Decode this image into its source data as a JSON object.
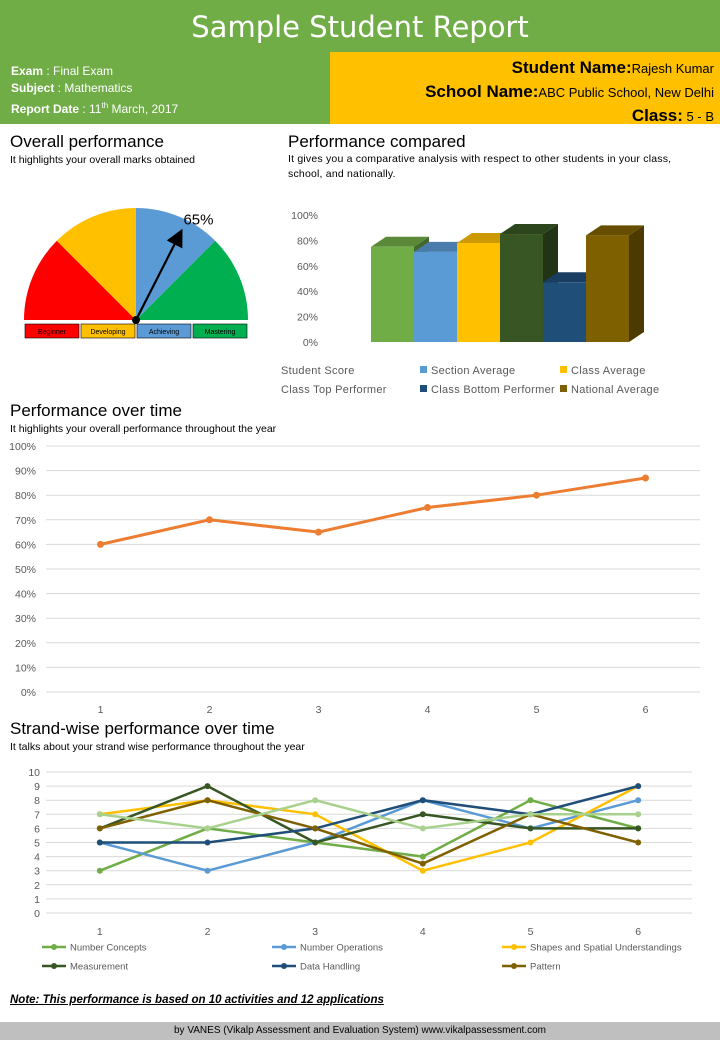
{
  "header": {
    "title": "Sample Student Report",
    "exam_label": "Exam",
    "exam_value": " : Final Exam",
    "subject_label": "Subject",
    "subject_value": " : Mathematics",
    "report_date_label": "Report Date",
    "report_date_prefix": " : 11",
    "report_date_sup": "th",
    "report_date_suffix": " March, 2017",
    "student_name_label": "Student Name:",
    "student_name_value": "Rajesh Kumar",
    "school_name_label": "School Name:",
    "school_name_value": "ABC Public School, New Delhi",
    "class_label": "Class:",
    "class_value": " 5 - B"
  },
  "overall": {
    "title": "Overall performance",
    "subtitle": "It highlights your overall marks obtained",
    "gauge_value_label": "65%",
    "gauge_percent": 65,
    "bands": [
      {
        "label": "Beginner",
        "color": "#ff0000"
      },
      {
        "label": "Developing",
        "color": "#ffc000"
      },
      {
        "label": "Achieving",
        "color": "#5b9bd5"
      },
      {
        "label": "Mastering",
        "color": "#00b050"
      }
    ]
  },
  "compared": {
    "title": "Performance compared",
    "subtitle": "It gives you a comparative analysis with respect to other students in your class, school, and nationally."
  },
  "over_time": {
    "title": "Performance over time",
    "subtitle": "It highlights your overall performance throughout the year"
  },
  "strand": {
    "title": "Strand-wise performance over time",
    "subtitle": "It talks about your strand wise performance throughout the year"
  },
  "chart_data": [
    {
      "type": "bar",
      "categories": [
        "Student Score",
        "Section Average",
        "Class Average",
        "Class Top Performer",
        "Class Bottom Performer",
        "National Average"
      ],
      "values": [
        75,
        71,
        78,
        85,
        47,
        84
      ],
      "colors": [
        "#70ad47",
        "#5b9bd5",
        "#ffc000",
        "#375623",
        "#1f4e79",
        "#7f6000"
      ],
      "ylim": [
        0,
        100
      ],
      "yticks": [
        "0%",
        "20%",
        "40%",
        "60%",
        "80%",
        "100%"
      ],
      "legend": [
        "Student Score",
        "Section Average",
        "Class Average",
        "Class Top Performer",
        "Class Bottom Performer",
        "National Average"
      ],
      "legend_position": "bottom",
      "title": "",
      "xlabel": "",
      "ylabel": ""
    },
    {
      "type": "line",
      "x": [
        1,
        2,
        3,
        4,
        5,
        6
      ],
      "values": [
        60,
        70,
        65,
        75,
        80,
        87
      ],
      "color": "#ed7d31",
      "ylim": [
        0,
        100
      ],
      "yticks": [
        "0%",
        "10%",
        "20%",
        "30%",
        "40%",
        "50%",
        "60%",
        "70%",
        "80%",
        "90%",
        "100%"
      ],
      "grid": true,
      "title": "",
      "xlabel": "",
      "ylabel": ""
    },
    {
      "type": "line",
      "x": [
        1,
        2,
        3,
        4,
        5,
        6
      ],
      "ylim": [
        0,
        10
      ],
      "yticks": [
        "0",
        "1",
        "2",
        "3",
        "4",
        "5",
        "6",
        "7",
        "8",
        "9",
        "10"
      ],
      "grid": true,
      "legend_position": "bottom",
      "series": [
        {
          "name": "Number Concepts",
          "values": [
            3,
            6,
            5,
            4,
            8,
            6
          ],
          "color": "#70ad47"
        },
        {
          "name": "Number Operations",
          "values": [
            5,
            3,
            5,
            8,
            6,
            8
          ],
          "color": "#5b9bd5"
        },
        {
          "name": "Shapes and Spatial Understandings",
          "values": [
            7,
            8,
            7,
            3,
            5,
            9
          ],
          "color": "#ffc000"
        },
        {
          "name": "Measurement",
          "values": [
            6,
            9,
            5,
            7,
            6,
            6
          ],
          "color": "#375623"
        },
        {
          "name": "Data Handling",
          "values": [
            5,
            5,
            6,
            8,
            7,
            9
          ],
          "color": "#1f4e79"
        },
        {
          "name": "Pattern",
          "values": [
            6,
            8,
            6,
            3.5,
            7,
            5
          ],
          "color": "#7f6000"
        },
        {
          "name": "",
          "values": [
            7,
            6,
            8,
            6,
            7,
            7
          ],
          "color": "#a9d18e"
        }
      ],
      "title": "",
      "xlabel": "",
      "ylabel": ""
    }
  ],
  "footer": {
    "note": "Note: This performance is based on 10 activities and 12 applications",
    "credit": "by VANES (Vikalp Assessment and Evaluation System) www.vikalpassessment.com"
  }
}
